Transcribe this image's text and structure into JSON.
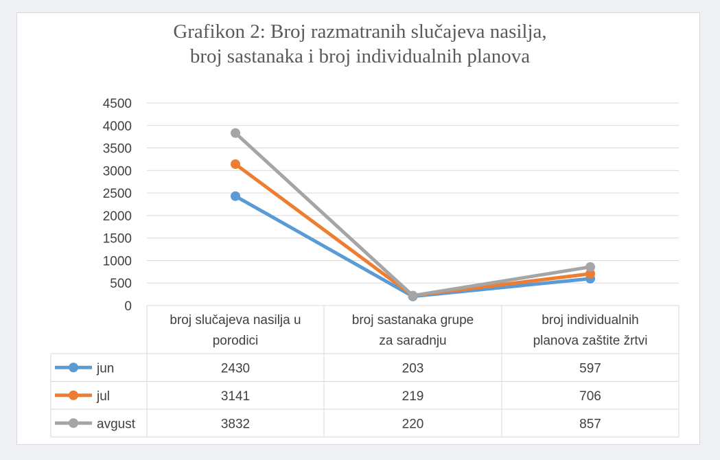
{
  "chart_data": {
    "type": "line",
    "title_lines": [
      "Grafikon 2: Broj razmatranih slučajeva nasilja,",
      "broj sastanaka i broj individualnih planova"
    ],
    "categories": [
      [
        "broj slučajeva nasilja u",
        "porodici"
      ],
      [
        "broj sastanaka grupe",
        "za saradnju"
      ],
      [
        "broj individualnih",
        "planova zaštite žrtvi"
      ]
    ],
    "series": [
      {
        "name": "jun",
        "color": "#5b9bd5",
        "values": [
          2430,
          203,
          597
        ]
      },
      {
        "name": "jul",
        "color": "#ed7d31",
        "values": [
          3141,
          219,
          706
        ]
      },
      {
        "name": "avgust",
        "color": "#a5a5a5",
        "values": [
          3832,
          220,
          857
        ]
      }
    ],
    "yticks": [
      0,
      500,
      1000,
      1500,
      2000,
      2500,
      3000,
      3500,
      4000,
      4500
    ],
    "ylim": [
      0,
      4500
    ],
    "grid": true,
    "legend": "data-table"
  }
}
